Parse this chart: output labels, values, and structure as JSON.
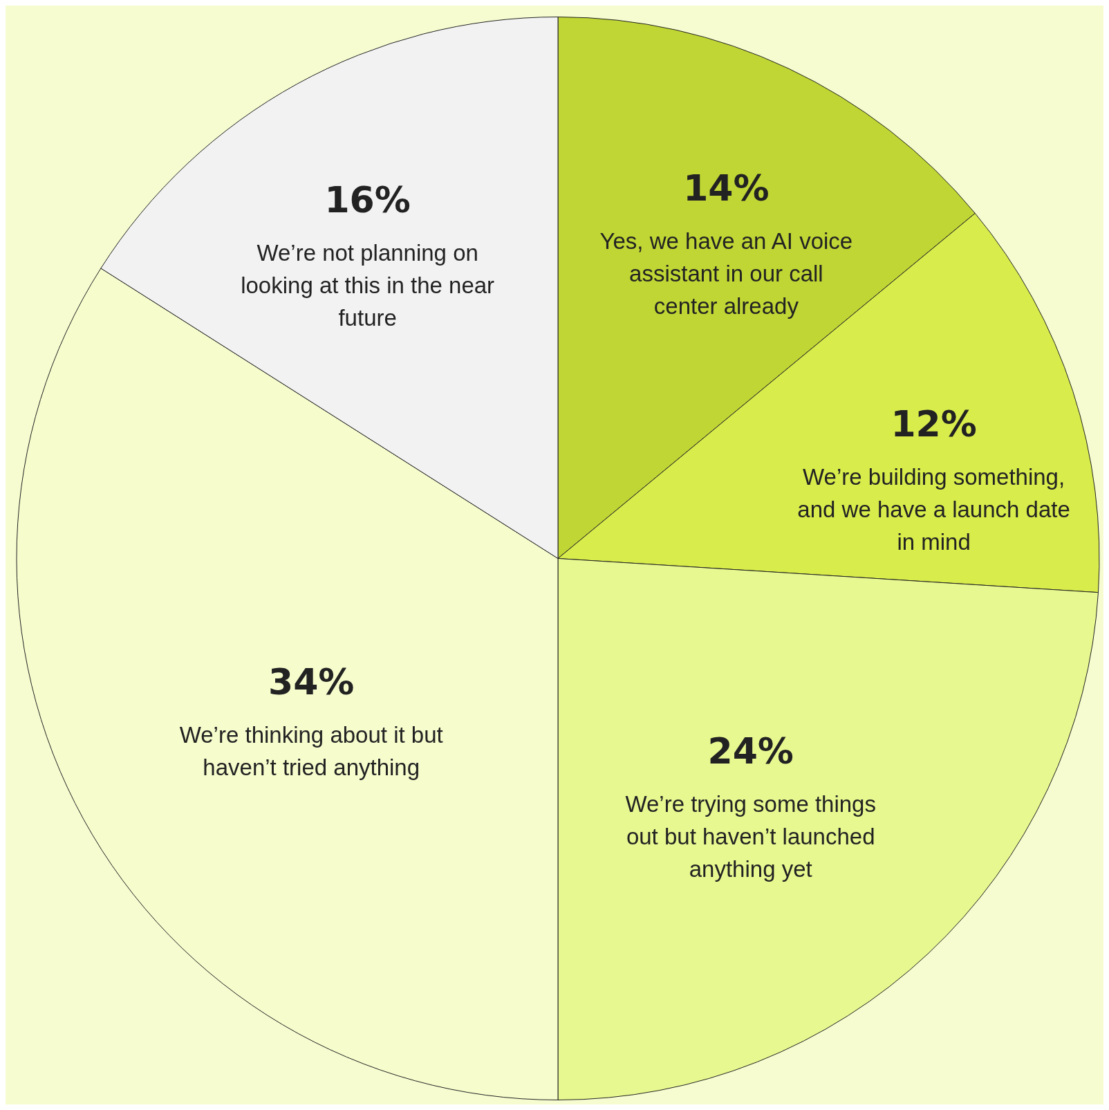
{
  "chart_data": {
    "type": "pie",
    "categories": [
      "Yes, we have an AI voice assistant in our call center already",
      "We’re building something, and we have a launch date in mind",
      "We’re trying some things out but haven’t launched anything yet",
      "We’re thinking about it but haven’t tried anything",
      "We’re not planning on looking at this in the near future"
    ],
    "values": [
      14,
      12,
      24,
      34,
      16
    ],
    "colors": [
      "#c0d634",
      "#d8ec4c",
      "#e8f890",
      "#f6fccc",
      "#f2f2f2"
    ],
    "value_labels": [
      "14%",
      "12%",
      "24%",
      "34%",
      "16%"
    ]
  }
}
